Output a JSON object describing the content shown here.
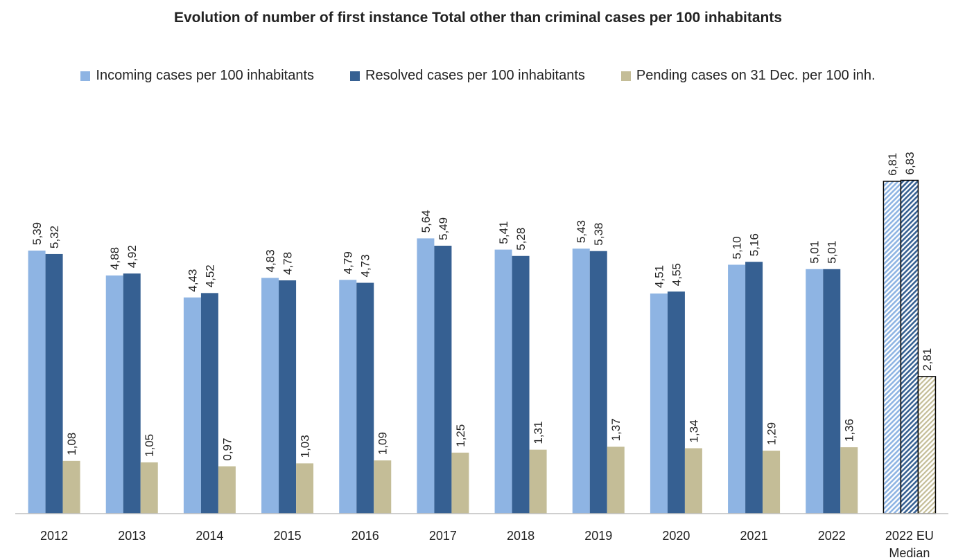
{
  "chart_data": {
    "type": "bar",
    "title": "Evolution of number of first instance Total other than criminal cases per 100 inhabitants",
    "categories": [
      "2012",
      "2013",
      "2014",
      "2015",
      "2016",
      "2017",
      "2018",
      "2019",
      "2020",
      "2021",
      "2022",
      "2022 EU Median"
    ],
    "series": [
      {
        "name": "Incoming cases per 100 inhabitants",
        "color": "#8eb4e3",
        "values": [
          5.39,
          4.88,
          4.43,
          4.83,
          4.79,
          5.64,
          5.41,
          5.43,
          4.51,
          5.1,
          5.01,
          6.81
        ],
        "labels": [
          "5,39",
          "4,88",
          "4,43",
          "4,83",
          "4,79",
          "5,64",
          "5,41",
          "5,43",
          "4,51",
          "5,10",
          "5,01",
          "6,81"
        ]
      },
      {
        "name": "Resolved cases per 100 inhabitants",
        "color": "#366092",
        "values": [
          5.32,
          4.92,
          4.52,
          4.78,
          4.73,
          5.49,
          5.28,
          5.38,
          4.55,
          5.16,
          5.01,
          6.83
        ],
        "labels": [
          "5,32",
          "4,92",
          "4,52",
          "4,78",
          "4,73",
          "5,49",
          "5,28",
          "5,38",
          "4,55",
          "5,16",
          "5,01",
          "6,83"
        ]
      },
      {
        "name": "Pending cases on 31 Dec. per 100 inh.",
        "color": "#c4bd97",
        "values": [
          1.08,
          1.05,
          0.97,
          1.03,
          1.09,
          1.25,
          1.31,
          1.37,
          1.34,
          1.29,
          1.36,
          2.81
        ],
        "labels": [
          "1,08",
          "1,05",
          "0,97",
          "1,03",
          "1,09",
          "1,25",
          "1,31",
          "1,37",
          "1,34",
          "1,29",
          "1,36",
          "2,81"
        ]
      }
    ],
    "hatched_category": "2022 EU Median",
    "ylim": [
      0,
      8
    ],
    "grid": false,
    "legend_position": "top"
  }
}
